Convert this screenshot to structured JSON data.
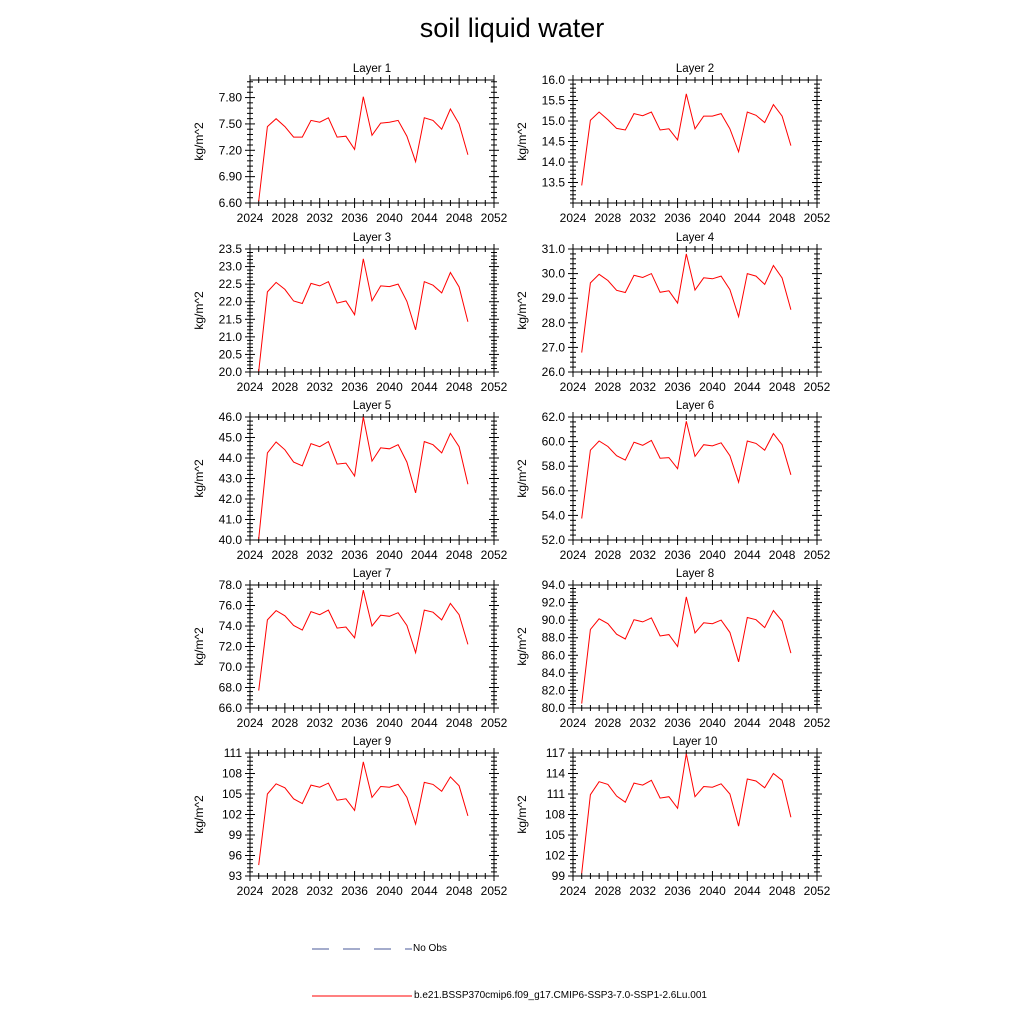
{
  "title": "soil liquid water",
  "colors": {
    "model": "#ff0000",
    "noobs": "#4a5a9a",
    "axis": "#000000"
  },
  "legend": {
    "noobs_label": "No Obs",
    "model_label": "b.e21.BSSP370cmip6.f09_g17.CMIP6-SSP3-7.0-SSP1-2.6Lu.001"
  },
  "chart_data": [
    {
      "type": "line",
      "title": "Layer 1",
      "ylabel": "kg/m^2",
      "xlim": [
        2024,
        2052
      ],
      "xticks": [
        2024,
        2028,
        2032,
        2036,
        2040,
        2044,
        2048,
        2052
      ],
      "ylim": [
        6.6,
        8.0
      ],
      "yticks": [
        "6.60",
        "6.90",
        "7.20",
        "7.50",
        "7.80"
      ],
      "x": [
        2025,
        2026,
        2027,
        2028,
        2029,
        2030,
        2031,
        2032,
        2033,
        2034,
        2035,
        2036,
        2037,
        2038,
        2039,
        2040,
        2041,
        2042,
        2043,
        2044,
        2045,
        2046,
        2047,
        2048,
        2049
      ],
      "series": [
        {
          "name": "b.e21.BSSP370cmip6.f09_g17.CMIP6-SSP3-7.0-SSP1-2.6Lu.001",
          "values": [
            6.62,
            7.47,
            7.56,
            7.47,
            7.35,
            7.35,
            7.54,
            7.52,
            7.57,
            7.35,
            7.36,
            7.21,
            7.81,
            7.37,
            7.51,
            7.52,
            7.54,
            7.36,
            7.07,
            7.57,
            7.54,
            7.44,
            7.67,
            7.5,
            7.15
          ]
        }
      ]
    },
    {
      "type": "line",
      "title": "Layer 2",
      "ylabel": "kg/m^2",
      "xlim": [
        2024,
        2052
      ],
      "xticks": [
        2024,
        2028,
        2032,
        2036,
        2040,
        2044,
        2048,
        2052
      ],
      "ylim": [
        13.0,
        16.0
      ],
      "yticks": [
        "13.5",
        "14.0",
        "14.5",
        "15.0",
        "15.5",
        "16.0"
      ],
      "x": [
        2025,
        2026,
        2027,
        2028,
        2029,
        2030,
        2031,
        2032,
        2033,
        2034,
        2035,
        2036,
        2037,
        2038,
        2039,
        2040,
        2041,
        2042,
        2043,
        2044,
        2045,
        2046,
        2047,
        2048,
        2049
      ],
      "series": [
        {
          "name": "b.e21.BSSP370cmip6.f09_g17.CMIP6-SSP3-7.0-SSP1-2.6Lu.001",
          "values": [
            13.43,
            15.02,
            15.22,
            15.03,
            14.82,
            14.78,
            15.18,
            15.13,
            15.22,
            14.78,
            14.81,
            14.54,
            15.66,
            14.81,
            15.12,
            15.12,
            15.18,
            14.81,
            14.25,
            15.22,
            15.14,
            14.96,
            15.4,
            15.12,
            14.4
          ]
        }
      ]
    },
    {
      "type": "line",
      "title": "Layer 3",
      "ylabel": "kg/m^2",
      "xlim": [
        2024,
        2052
      ],
      "xticks": [
        2024,
        2028,
        2032,
        2036,
        2040,
        2044,
        2048,
        2052
      ],
      "ylim": [
        20.0,
        23.5
      ],
      "yticks": [
        "20.0",
        "20.5",
        "21.0",
        "21.5",
        "22.0",
        "22.5",
        "23.0",
        "23.5"
      ],
      "x": [
        2025,
        2026,
        2027,
        2028,
        2029,
        2030,
        2031,
        2032,
        2033,
        2034,
        2035,
        2036,
        2037,
        2038,
        2039,
        2040,
        2041,
        2042,
        2043,
        2044,
        2045,
        2046,
        2047,
        2048,
        2049
      ],
      "series": [
        {
          "name": "b.e21.BSSP370cmip6.f09_g17.CMIP6-SSP3-7.0-SSP1-2.6Lu.001",
          "values": [
            20.02,
            22.28,
            22.55,
            22.35,
            22.02,
            21.95,
            22.52,
            22.45,
            22.57,
            21.96,
            22.02,
            21.63,
            23.22,
            22.03,
            22.45,
            22.43,
            22.5,
            22.01,
            21.2,
            22.57,
            22.47,
            22.25,
            22.83,
            22.42,
            21.43
          ]
        }
      ]
    },
    {
      "type": "line",
      "title": "Layer 4",
      "ylabel": "kg/m^2",
      "xlim": [
        2024,
        2052
      ],
      "xticks": [
        2024,
        2028,
        2032,
        2036,
        2040,
        2044,
        2048,
        2052
      ],
      "ylim": [
        26.0,
        31.0
      ],
      "yticks": [
        "26.0",
        "27.0",
        "28.0",
        "29.0",
        "30.0",
        "31.0"
      ],
      "x": [
        2025,
        2026,
        2027,
        2028,
        2029,
        2030,
        2031,
        2032,
        2033,
        2034,
        2035,
        2036,
        2037,
        2038,
        2039,
        2040,
        2041,
        2042,
        2043,
        2044,
        2045,
        2046,
        2047,
        2048,
        2049
      ],
      "series": [
        {
          "name": "b.e21.BSSP370cmip6.f09_g17.CMIP6-SSP3-7.0-SSP1-2.6Lu.001",
          "values": [
            26.79,
            29.62,
            29.97,
            29.72,
            29.32,
            29.23,
            29.93,
            29.84,
            30.0,
            29.24,
            29.3,
            28.8,
            30.8,
            29.33,
            29.83,
            29.79,
            29.9,
            29.35,
            28.25,
            30.0,
            29.9,
            29.56,
            30.33,
            29.82,
            28.53
          ]
        }
      ]
    },
    {
      "type": "line",
      "title": "Layer 5",
      "ylabel": "kg/m^2",
      "xlim": [
        2024,
        2052
      ],
      "xticks": [
        2024,
        2028,
        2032,
        2036,
        2040,
        2044,
        2048,
        2052
      ],
      "ylim": [
        40.0,
        46.0
      ],
      "yticks": [
        "40.0",
        "41.0",
        "42.0",
        "43.0",
        "44.0",
        "45.0",
        "46.0"
      ],
      "x": [
        2025,
        2026,
        2027,
        2028,
        2029,
        2030,
        2031,
        2032,
        2033,
        2034,
        2035,
        2036,
        2037,
        2038,
        2039,
        2040,
        2041,
        2042,
        2043,
        2044,
        2045,
        2046,
        2047,
        2048,
        2049
      ],
      "series": [
        {
          "name": "b.e21.BSSP370cmip6.f09_g17.CMIP6-SSP3-7.0-SSP1-2.6Lu.001",
          "values": [
            40.05,
            44.25,
            44.78,
            44.4,
            43.8,
            43.62,
            44.7,
            44.55,
            44.8,
            43.7,
            43.75,
            43.12,
            46.0,
            43.85,
            44.5,
            44.45,
            44.65,
            43.8,
            42.3,
            44.8,
            44.65,
            44.25,
            45.2,
            44.55,
            42.72
          ]
        }
      ]
    },
    {
      "type": "line",
      "title": "Layer 6",
      "ylabel": "kg/m^2",
      "xlim": [
        2024,
        2052
      ],
      "xticks": [
        2024,
        2028,
        2032,
        2036,
        2040,
        2044,
        2048,
        2052
      ],
      "ylim": [
        52.0,
        62.0
      ],
      "yticks": [
        "52.0",
        "54.0",
        "56.0",
        "58.0",
        "60.0",
        "62.0"
      ],
      "x": [
        2025,
        2026,
        2027,
        2028,
        2029,
        2030,
        2031,
        2032,
        2033,
        2034,
        2035,
        2036,
        2037,
        2038,
        2039,
        2040,
        2041,
        2042,
        2043,
        2044,
        2045,
        2046,
        2047,
        2048,
        2049
      ],
      "series": [
        {
          "name": "b.e21.BSSP370cmip6.f09_g17.CMIP6-SSP3-7.0-SSP1-2.6Lu.001",
          "values": [
            53.75,
            59.3,
            60.05,
            59.6,
            58.85,
            58.5,
            59.95,
            59.7,
            60.1,
            58.65,
            58.7,
            57.8,
            61.65,
            58.8,
            59.75,
            59.65,
            59.9,
            58.85,
            56.7,
            60.05,
            59.85,
            59.3,
            60.65,
            59.75,
            57.3
          ]
        }
      ]
    },
    {
      "type": "line",
      "title": "Layer 7",
      "ylabel": "kg/m^2",
      "xlim": [
        2024,
        2052
      ],
      "xticks": [
        2024,
        2028,
        2032,
        2036,
        2040,
        2044,
        2048,
        2052
      ],
      "ylim": [
        66.0,
        78.0
      ],
      "yticks": [
        "66.0",
        "68.0",
        "70.0",
        "72.0",
        "74.0",
        "76.0",
        "78.0"
      ],
      "x": [
        2025,
        2026,
        2027,
        2028,
        2029,
        2030,
        2031,
        2032,
        2033,
        2034,
        2035,
        2036,
        2037,
        2038,
        2039,
        2040,
        2041,
        2042,
        2043,
        2044,
        2045,
        2046,
        2047,
        2048,
        2049
      ],
      "series": [
        {
          "name": "b.e21.BSSP370cmip6.f09_g17.CMIP6-SSP3-7.0-SSP1-2.6Lu.001",
          "values": [
            67.7,
            74.6,
            75.5,
            75.0,
            74.05,
            73.6,
            75.4,
            75.1,
            75.55,
            73.8,
            73.9,
            72.85,
            77.5,
            74.0,
            75.05,
            74.95,
            75.3,
            74.05,
            71.4,
            75.55,
            75.35,
            74.6,
            76.2,
            75.1,
            72.2
          ]
        }
      ]
    },
    {
      "type": "line",
      "title": "Layer 8",
      "ylabel": "kg/m^2",
      "xlim": [
        2024,
        2052
      ],
      "xticks": [
        2024,
        2028,
        2032,
        2036,
        2040,
        2044,
        2048,
        2052
      ],
      "ylim": [
        80.0,
        94.0
      ],
      "yticks": [
        "80.0",
        "82.0",
        "84.0",
        "86.0",
        "88.0",
        "90.0",
        "92.0",
        "94.0"
      ],
      "x": [
        2025,
        2026,
        2027,
        2028,
        2029,
        2030,
        2031,
        2032,
        2033,
        2034,
        2035,
        2036,
        2037,
        2038,
        2039,
        2040,
        2041,
        2042,
        2043,
        2044,
        2045,
        2046,
        2047,
        2048,
        2049
      ],
      "series": [
        {
          "name": "b.e21.BSSP370cmip6.f09_g17.CMIP6-SSP3-7.0-SSP1-2.6Lu.001",
          "values": [
            80.5,
            88.95,
            90.15,
            89.6,
            88.4,
            87.85,
            90.05,
            89.8,
            90.25,
            88.2,
            88.35,
            87.0,
            92.65,
            88.55,
            89.7,
            89.6,
            90.0,
            88.6,
            85.25,
            90.3,
            90.05,
            89.15,
            91.1,
            89.9,
            86.25
          ]
        }
      ]
    },
    {
      "type": "line",
      "title": "Layer 9",
      "ylabel": "kg/m^2",
      "xlim": [
        2024,
        2052
      ],
      "xticks": [
        2024,
        2028,
        2032,
        2036,
        2040,
        2044,
        2048,
        2052
      ],
      "ylim": [
        93,
        111
      ],
      "yticks": [
        "93",
        "96",
        "99",
        "102",
        "105",
        "108",
        "111"
      ],
      "x": [
        2025,
        2026,
        2027,
        2028,
        2029,
        2030,
        2031,
        2032,
        2033,
        2034,
        2035,
        2036,
        2037,
        2038,
        2039,
        2040,
        2041,
        2042,
        2043,
        2044,
        2045,
        2046,
        2047,
        2048,
        2049
      ],
      "series": [
        {
          "name": "b.e21.BSSP370cmip6.f09_g17.CMIP6-SSP3-7.0-SSP1-2.6Lu.001",
          "values": [
            94.6,
            105.0,
            106.5,
            105.9,
            104.3,
            103.6,
            106.3,
            106.0,
            106.6,
            104.1,
            104.3,
            102.6,
            109.7,
            104.5,
            106.1,
            106.0,
            106.4,
            104.5,
            100.6,
            106.7,
            106.4,
            105.4,
            107.5,
            106.2,
            101.8
          ]
        }
      ]
    },
    {
      "type": "line",
      "title": "Layer 10",
      "ylabel": "kg/m^2",
      "xlim": [
        2024,
        2052
      ],
      "xticks": [
        2024,
        2028,
        2032,
        2036,
        2040,
        2044,
        2048,
        2052
      ],
      "ylim": [
        99,
        117
      ],
      "yticks": [
        "99",
        "102",
        "105",
        "108",
        "111",
        "114",
        "117"
      ],
      "x": [
        2025,
        2026,
        2027,
        2028,
        2029,
        2030,
        2031,
        2032,
        2033,
        2034,
        2035,
        2036,
        2037,
        2038,
        2039,
        2040,
        2041,
        2042,
        2043,
        2044,
        2045,
        2046,
        2047,
        2048,
        2049
      ],
      "series": [
        {
          "name": "b.e21.BSSP370cmip6.f09_g17.CMIP6-SSP3-7.0-SSP1-2.6Lu.001",
          "values": [
            99.4,
            110.9,
            112.8,
            112.4,
            110.7,
            109.8,
            112.6,
            112.3,
            113.0,
            110.4,
            110.6,
            108.9,
            116.9,
            110.6,
            112.1,
            112.0,
            112.5,
            111.0,
            106.3,
            113.2,
            112.9,
            111.9,
            114.0,
            113.0,
            107.6
          ]
        }
      ]
    }
  ]
}
